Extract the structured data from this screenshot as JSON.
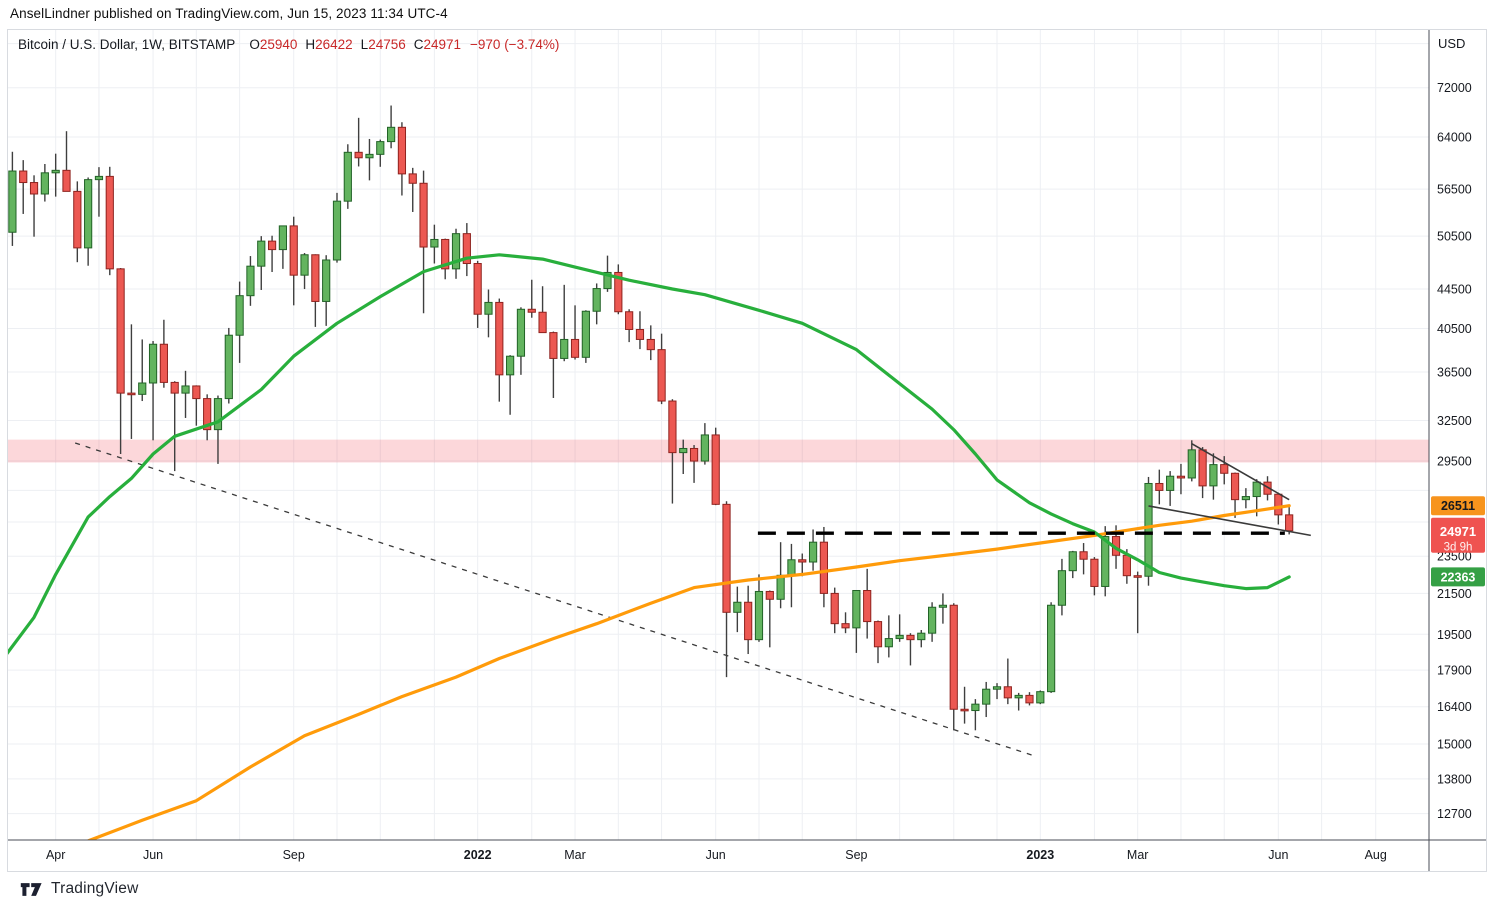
{
  "attribution": "AnselLindner published on TradingView.com, Jun 15, 2023 11:34 UTC-4",
  "header": {
    "symbol_title": "Bitcoin / U.S. Dollar, 1W, BITSTAMP",
    "ohlc": [
      {
        "k": "O",
        "v": "25940"
      },
      {
        "k": "H",
        "v": "26422"
      },
      {
        "k": "L",
        "v": "24756"
      },
      {
        "k": "C",
        "v": "24971"
      }
    ],
    "change": "−970 (−3.74%)"
  },
  "footer": {
    "logo_text": "TradingView"
  },
  "price_axis": {
    "currency": "USD",
    "ticks": [
      {
        "p": 80000,
        "label": ""
      },
      {
        "p": 72000,
        "label": "72000"
      },
      {
        "p": 64000,
        "label": "64000"
      },
      {
        "p": 56500,
        "label": "56500"
      },
      {
        "p": 50500,
        "label": "50500"
      },
      {
        "p": 44500,
        "label": "44500"
      },
      {
        "p": 40500,
        "label": "40500"
      },
      {
        "p": 36500,
        "label": "36500"
      },
      {
        "p": 32500,
        "label": "32500"
      },
      {
        "p": 29500,
        "label": "29500"
      },
      {
        "p": 27500,
        "label": ""
      },
      {
        "p": 25500,
        "label": ""
      },
      {
        "p": 23500,
        "label": "23500"
      },
      {
        "p": 21500,
        "label": "21500"
      },
      {
        "p": 19500,
        "label": "19500"
      },
      {
        "p": 17900,
        "label": "17900"
      },
      {
        "p": 16400,
        "label": "16400"
      },
      {
        "p": 15000,
        "label": "15000"
      },
      {
        "p": 13800,
        "label": "13800"
      },
      {
        "p": 12700,
        "label": "12700"
      }
    ],
    "badges": [
      {
        "name": "ma-200w-value-badge",
        "value": "26511",
        "price": 26511,
        "bg": "#f7941d",
        "fg": "#16191f"
      },
      {
        "name": "last-price-badge",
        "value": "24971",
        "price": 24971,
        "bg": "#ef5350",
        "fg": "#ffffff",
        "sub": "3d 9h"
      },
      {
        "name": "ma-50w-value-badge",
        "value": "22363",
        "price": 22363,
        "bg": "#35a045",
        "fg": "#ffffff"
      }
    ]
  },
  "time_axis": {
    "months": [
      {
        "i": 5,
        "label": "Apr"
      },
      {
        "i": 9,
        "label": ""
      },
      {
        "i": 14,
        "label": "Jun"
      },
      {
        "i": 18,
        "label": ""
      },
      {
        "i": 22,
        "label": ""
      },
      {
        "i": 27,
        "label": "Sep"
      },
      {
        "i": 31,
        "label": ""
      },
      {
        "i": 35,
        "label": ""
      },
      {
        "i": 40,
        "label": ""
      },
      {
        "i": 44,
        "label": "2022",
        "bold": true
      },
      {
        "i": 49,
        "label": ""
      },
      {
        "i": 53,
        "label": "Mar"
      },
      {
        "i": 57,
        "label": ""
      },
      {
        "i": 61,
        "label": ""
      },
      {
        "i": 66,
        "label": "Jun"
      },
      {
        "i": 70,
        "label": ""
      },
      {
        "i": 74,
        "label": ""
      },
      {
        "i": 79,
        "label": "Sep"
      },
      {
        "i": 83,
        "label": ""
      },
      {
        "i": 88,
        "label": ""
      },
      {
        "i": 92,
        "label": ""
      },
      {
        "i": 96,
        "label": "2023",
        "bold": true
      },
      {
        "i": 101,
        "label": ""
      },
      {
        "i": 105,
        "label": "Mar"
      },
      {
        "i": 109,
        "label": ""
      },
      {
        "i": 113,
        "label": ""
      },
      {
        "i": 118,
        "label": "Jun"
      },
      {
        "i": 122,
        "label": ""
      },
      {
        "i": 127,
        "label": "Aug"
      }
    ]
  },
  "chart_data": {
    "type": "candlestick",
    "title": "Bitcoin / U.S. Dollar, 1W, BITSTAMP",
    "timeframe": "1W",
    "scale": "log",
    "ylim": [
      11950,
      82300
    ],
    "grid": true,
    "candle_style": {
      "up_fill": "#63b45f",
      "up_border": "#226327",
      "down_fill": "#ec5852",
      "down_border": "#8f231f",
      "wick": "#3f3f3f",
      "body_width": 7.2
    },
    "candles": [
      [
        45150,
        52640,
        44950,
        50970
      ],
      [
        50970,
        61780,
        49330,
        59000
      ],
      [
        59000,
        60560,
        53250,
        57400
      ],
      [
        57400,
        58400,
        50430,
        55850
      ],
      [
        55850,
        60000,
        54850,
        58750
      ],
      [
        58750,
        61500,
        55500,
        59100
      ],
      [
        59100,
        64895,
        59050,
        56200
      ],
      [
        56200,
        57560,
        47450,
        49100
      ],
      [
        49100,
        58100,
        47050,
        57800
      ],
      [
        57800,
        59550,
        52900,
        58250
      ],
      [
        58250,
        59600,
        46000,
        46700
      ],
      [
        46700,
        46800,
        30000,
        34700
      ],
      [
        34700,
        40900,
        31100,
        34600
      ],
      [
        34600,
        39450,
        34050,
        35550
      ],
      [
        35550,
        39300,
        31000,
        39000
      ],
      [
        39000,
        41350,
        35150,
        35600
      ],
      [
        35600,
        35700,
        28800,
        34700
      ],
      [
        34700,
        36600,
        32700,
        35300
      ],
      [
        35300,
        35350,
        32100,
        34250
      ],
      [
        34250,
        34600,
        31000,
        31800
      ],
      [
        31800,
        34500,
        29300,
        34250
      ],
      [
        34250,
        40550,
        33850,
        39850
      ],
      [
        39850,
        45300,
        37300,
        43800
      ],
      [
        43800,
        48150,
        42750,
        47000
      ],
      [
        47000,
        50500,
        44400,
        49900
      ],
      [
        49900,
        50550,
        46350,
        48900
      ],
      [
        48900,
        51100,
        46700,
        51750
      ],
      [
        51750,
        52900,
        42800,
        46000
      ],
      [
        46000,
        48500,
        44500,
        48300
      ],
      [
        48300,
        48350,
        40650,
        43200
      ],
      [
        43200,
        48250,
        40750,
        47700
      ],
      [
        47700,
        56000,
        47400,
        54900
      ],
      [
        54900,
        62900,
        53900,
        61700
      ],
      [
        61700,
        67000,
        59650,
        60900
      ],
      [
        60900,
        63700,
        57700,
        61400
      ],
      [
        61400,
        63600,
        59600,
        63300
      ],
      [
        63300,
        69000,
        62300,
        65500
      ],
      [
        65500,
        66300,
        55650,
        58600
      ],
      [
        58600,
        59450,
        53500,
        57300
      ],
      [
        57300,
        59050,
        42000,
        49200
      ],
      [
        49200,
        51900,
        47300,
        50100
      ],
      [
        50100,
        50200,
        45550,
        46700
      ],
      [
        46700,
        51400,
        45600,
        50800
      ],
      [
        50800,
        52100,
        45900,
        47300
      ],
      [
        47300,
        47600,
        40550,
        41900
      ],
      [
        41900,
        44450,
        39650,
        43100
      ],
      [
        43100,
        43500,
        34000,
        36250
      ],
      [
        36250,
        38000,
        32950,
        37900
      ],
      [
        37900,
        42600,
        36250,
        42400
      ],
      [
        42400,
        45500,
        41550,
        42100
      ],
      [
        42100,
        44800,
        40100,
        40100
      ],
      [
        40100,
        40200,
        34300,
        37700
      ],
      [
        37700,
        44950,
        37450,
        39450
      ],
      [
        39450,
        42800,
        37600,
        37800
      ],
      [
        37800,
        42300,
        37300,
        42200
      ],
      [
        42200,
        45100,
        40900,
        44550
      ],
      [
        44550,
        48200,
        44200,
        46300
      ],
      [
        46300,
        47200,
        41900,
        42150
      ],
      [
        42150,
        42400,
        39200,
        40400
      ],
      [
        40400,
        42200,
        38550,
        39450
      ],
      [
        39450,
        40800,
        37550,
        38500
      ],
      [
        38500,
        40000,
        33800,
        34050
      ],
      [
        34050,
        34200,
        26650,
        30100
      ],
      [
        30100,
        31050,
        28600,
        30400
      ],
      [
        30400,
        30650,
        28000,
        29500
      ],
      [
        29500,
        32300,
        29250,
        31400
      ],
      [
        31400,
        31950,
        26550,
        26600
      ],
      [
        26600,
        26800,
        17600,
        20550
      ],
      [
        20550,
        21850,
        19600,
        21050
      ],
      [
        21050,
        21900,
        18600,
        19250
      ],
      [
        19250,
        22500,
        19150,
        21600
      ],
      [
        21600,
        21650,
        18900,
        21200
      ],
      [
        21200,
        24300,
        20750,
        22450
      ],
      [
        22450,
        24200,
        20800,
        23300
      ],
      [
        23300,
        23650,
        22400,
        23175
      ],
      [
        23175,
        25050,
        22700,
        24300
      ],
      [
        24300,
        25200,
        20800,
        21500
      ],
      [
        21500,
        21800,
        19550,
        20000
      ],
      [
        20000,
        20550,
        19550,
        19800
      ],
      [
        19800,
        21650,
        18650,
        21650
      ],
      [
        21650,
        22800,
        19300,
        20100
      ],
      [
        20100,
        20150,
        18200,
        18925
      ],
      [
        18925,
        20400,
        18450,
        19300
      ],
      [
        19300,
        20450,
        19150,
        19450
      ],
      [
        19450,
        19550,
        18100,
        19250
      ],
      [
        19250,
        19700,
        18900,
        19550
      ],
      [
        19550,
        21050,
        19150,
        20800
      ],
      [
        20800,
        21500,
        20000,
        20900
      ],
      [
        20900,
        21000,
        15500,
        16300
      ],
      [
        16300,
        17200,
        15750,
        16250
      ],
      [
        16250,
        16700,
        15500,
        16500
      ],
      [
        16500,
        17400,
        16000,
        17100
      ],
      [
        17100,
        17350,
        16700,
        17200
      ],
      [
        17200,
        18400,
        16500,
        16750
      ],
      [
        16750,
        16950,
        16250,
        16850
      ],
      [
        16850,
        16980,
        16450,
        16550
      ],
      [
        16550,
        17050,
        16500,
        17000
      ],
      [
        17000,
        21050,
        16950,
        20900
      ],
      [
        20900,
        23350,
        20400,
        22700
      ],
      [
        22700,
        23800,
        22300,
        23750
      ],
      [
        23750,
        24250,
        22500,
        23330
      ],
      [
        23330,
        23450,
        21400,
        21860
      ],
      [
        21860,
        25250,
        21350,
        24630
      ],
      [
        24630,
        25300,
        22800,
        23550
      ],
      [
        23550,
        23900,
        22000,
        22430
      ],
      [
        22430,
        22650,
        19550,
        22400
      ],
      [
        22400,
        28400,
        21900,
        27960
      ],
      [
        27960,
        28900,
        26600,
        27500
      ],
      [
        27500,
        28800,
        26500,
        28450
      ],
      [
        28450,
        29300,
        27250,
        28330
      ],
      [
        28330,
        31000,
        28100,
        30300
      ],
      [
        30300,
        30500,
        27000,
        27800
      ],
      [
        27800,
        30050,
        26900,
        29250
      ],
      [
        29250,
        29850,
        27900,
        28650
      ],
      [
        28650,
        28700,
        25750,
        26900
      ],
      [
        26900,
        27650,
        26350,
        27100
      ],
      [
        27100,
        28250,
        25850,
        28050
      ],
      [
        28050,
        28450,
        26850,
        27250
      ],
      [
        27250,
        27350,
        25350,
        25940
      ],
      [
        25940,
        26422,
        24756,
        24971
      ]
    ],
    "overlays": [
      {
        "name": "ma-50w-line",
        "color": "#28af3c",
        "width": 3.2,
        "points": [
          [
            0,
            18300
          ],
          [
            3,
            20300
          ],
          [
            5,
            22500
          ],
          [
            8,
            25800
          ],
          [
            10,
            27100
          ],
          [
            12,
            28300
          ],
          [
            14,
            30000
          ],
          [
            16,
            31300
          ],
          [
            20,
            32400
          ],
          [
            24,
            35000
          ],
          [
            27,
            37900
          ],
          [
            31,
            41000
          ],
          [
            35,
            43700
          ],
          [
            39,
            46400
          ],
          [
            43,
            47900
          ],
          [
            46,
            48300
          ],
          [
            50,
            47800
          ],
          [
            53,
            46900
          ],
          [
            58,
            45450
          ],
          [
            62,
            44500
          ],
          [
            65,
            43900
          ],
          [
            70,
            42300
          ],
          [
            74,
            41000
          ],
          [
            79,
            38500
          ],
          [
            83,
            35500
          ],
          [
            86,
            33400
          ],
          [
            88,
            31800
          ],
          [
            90,
            30000
          ],
          [
            92,
            28200
          ],
          [
            95,
            26700
          ],
          [
            97,
            26000
          ],
          [
            99,
            25400
          ],
          [
            101,
            24900
          ],
          [
            103,
            23950
          ],
          [
            105,
            23300
          ],
          [
            107,
            22600
          ],
          [
            109,
            22300
          ],
          [
            111,
            22100
          ],
          [
            113,
            21900
          ],
          [
            115,
            21750
          ],
          [
            117,
            21800
          ],
          [
            119,
            22363
          ]
        ]
      },
      {
        "name": "ma-200w-line",
        "color": "#ff9b0a",
        "width": 3.2,
        "points": [
          [
            8,
            11900
          ],
          [
            13,
            12500
          ],
          [
            18,
            13100
          ],
          [
            23,
            14200
          ],
          [
            28,
            15300
          ],
          [
            33,
            16100
          ],
          [
            37,
            16800
          ],
          [
            42,
            17600
          ],
          [
            46,
            18400
          ],
          [
            51,
            19300
          ],
          [
            55,
            20000
          ],
          [
            60,
            21000
          ],
          [
            64,
            21800
          ],
          [
            69,
            22200
          ],
          [
            74,
            22500
          ],
          [
            79,
            22900
          ],
          [
            83,
            23250
          ],
          [
            88,
            23600
          ],
          [
            92,
            23900
          ],
          [
            96,
            24250
          ],
          [
            101,
            24700
          ],
          [
            104,
            25000
          ],
          [
            107,
            25300
          ],
          [
            110,
            25550
          ],
          [
            113,
            25900
          ],
          [
            116,
            26200
          ],
          [
            119,
            26511
          ]
        ]
      }
    ],
    "drawings": [
      {
        "name": "resistance-band",
        "type": "band",
        "price_top": 31050,
        "price_bottom": 29400,
        "fill": "rgba(242,54,69,0.2)"
      },
      {
        "name": "downtrend-dashed-line",
        "type": "segment",
        "from": [
          6.8,
          30800
        ],
        "to": [
          95.7,
          14550
        ],
        "color": "#3a3a3a",
        "width": 1.3,
        "dash": "5,6"
      },
      {
        "name": "support-dashed-line",
        "type": "segment",
        "from": [
          69.9,
          24830
        ],
        "to": [
          118.6,
          24830
        ],
        "color": "#000000",
        "width": 3.4,
        "dash": "18,11"
      },
      {
        "name": "wedge-upper-line",
        "type": "segment",
        "from": [
          110,
          30750
        ],
        "to": [
          119,
          26900
        ],
        "color": "#3a3a3a",
        "width": 1.6
      },
      {
        "name": "wedge-lower-line",
        "type": "segment",
        "from": [
          106,
          26500
        ],
        "to": [
          121,
          24700
        ],
        "color": "#3a3a3a",
        "width": 1.6
      }
    ]
  }
}
